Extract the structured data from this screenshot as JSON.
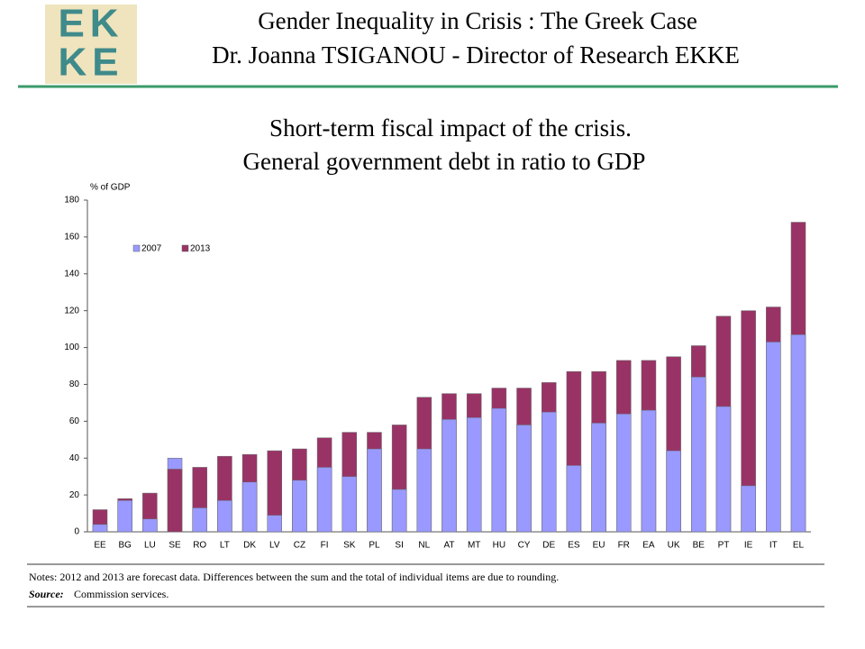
{
  "header": {
    "logo": [
      "EK",
      "KE"
    ],
    "title": "Gender Inequality in Crisis : The Greek Case",
    "subtitle": "Dr. Joanna TSIGANOU - Director of Research EKKE"
  },
  "chart_data": {
    "type": "bar",
    "overlap": true,
    "title": "Short-term fiscal impact of the crisis.",
    "subtitle": "General government debt in ratio to GDP",
    "ylabel": "% of GDP",
    "categories": [
      "EE",
      "BG",
      "LU",
      "SE",
      "RO",
      "LT",
      "DK",
      "LV",
      "CZ",
      "FI",
      "SK",
      "PL",
      "SI",
      "NL",
      "AT",
      "MT",
      "HU",
      "CY",
      "DE",
      "ES",
      "EU",
      "FR",
      "EA",
      "UK",
      "BE",
      "PT",
      "IE",
      "IT",
      "EL"
    ],
    "series": [
      {
        "name": "2007",
        "color": "#9999ff",
        "values": [
          4,
          17,
          7,
          40,
          13,
          17,
          27,
          9,
          28,
          35,
          30,
          45,
          23,
          45,
          61,
          62,
          67,
          58,
          65,
          36,
          59,
          64,
          66,
          44,
          84,
          68,
          25,
          103,
          107
        ]
      },
      {
        "name": "2013",
        "color": "#993366",
        "values": [
          12,
          18,
          21,
          34,
          35,
          41,
          42,
          44,
          45,
          51,
          54,
          54,
          58,
          73,
          75,
          75,
          78,
          78,
          81,
          87,
          87,
          93,
          93,
          95,
          101,
          117,
          120,
          122,
          168
        ]
      }
    ],
    "ylim": [
      0,
      180
    ],
    "yticks": [
      0,
      20,
      40,
      60,
      80,
      100,
      120,
      140,
      160,
      180
    ],
    "legend": "upper-left",
    "grid": false
  },
  "notes": {
    "text": "Notes:  2012 and 2013 are forecast data. Differences between the sum and the total of individual items are due to rounding.",
    "source_label": "Source:",
    "source": "Commission services."
  }
}
